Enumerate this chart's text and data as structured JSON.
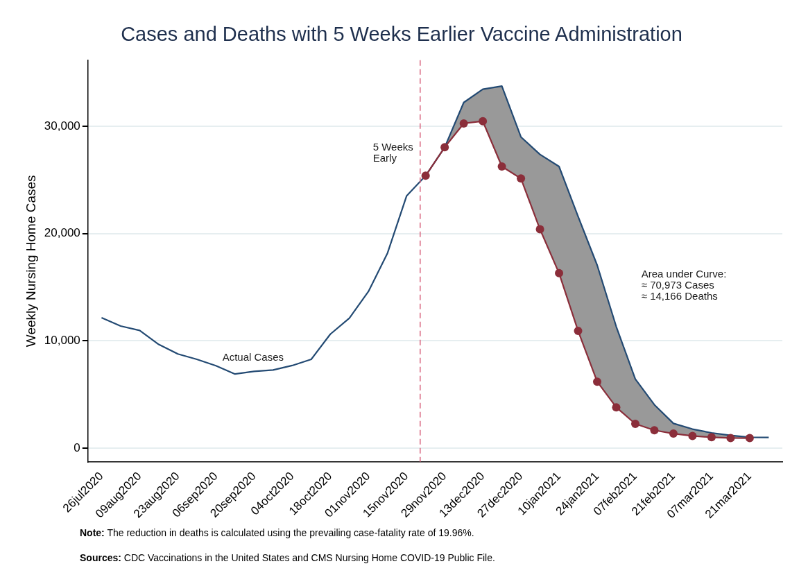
{
  "chart_data": {
    "type": "line",
    "title": "Cases and Deaths with 5 Weeks Earlier Vaccine Administration",
    "ylabel": "Weekly Nursing Home Cases",
    "series": [
      {
        "name": "Actual Cases",
        "color": "#234a73",
        "marker": "none",
        "x": [
          "2020-07-26",
          "2020-08-02",
          "2020-08-09",
          "2020-08-16",
          "2020-08-23",
          "2020-08-30",
          "2020-09-06",
          "2020-09-13",
          "2020-09-20",
          "2020-09-27",
          "2020-10-04",
          "2020-10-11",
          "2020-10-18",
          "2020-10-25",
          "2020-11-01",
          "2020-11-08",
          "2020-11-15",
          "2020-11-22",
          "2020-11-29",
          "2020-12-06",
          "2020-12-13",
          "2020-12-20",
          "2020-12-27",
          "2021-01-03",
          "2021-01-10",
          "2021-01-17",
          "2021-01-24",
          "2021-01-31",
          "2021-02-07",
          "2021-02-14",
          "2021-02-21",
          "2021-02-28",
          "2021-03-07",
          "2021-03-14",
          "2021-03-21",
          "2021-03-28"
        ],
        "values": [
          12160,
          11380,
          10970,
          9660,
          8780,
          8280,
          7680,
          6910,
          7150,
          7280,
          7700,
          8280,
          10620,
          12120,
          14600,
          18170,
          23490,
          25380,
          28030,
          32200,
          33440,
          33730,
          28990,
          27360,
          26240,
          21580,
          17050,
          11330,
          6440,
          4050,
          2310,
          1780,
          1430,
          1190,
          1020,
          1000
        ]
      },
      {
        "color": "#8b2e3a",
        "marker": "circle",
        "x": [
          "2020-11-22",
          "2020-11-29",
          "2020-12-06",
          "2020-12-13",
          "2020-12-20",
          "2020-12-27",
          "2021-01-03",
          "2021-01-10",
          "2021-01-17",
          "2021-01-24",
          "2021-01-31",
          "2021-02-07",
          "2021-02-14",
          "2021-02-21",
          "2021-02-28",
          "2021-03-07",
          "2021-03-14",
          "2021-03-21"
        ],
        "values": [
          25380,
          28030,
          30250,
          30460,
          26240,
          25120,
          20390,
          16300,
          10920,
          6200,
          3810,
          2270,
          1670,
          1360,
          1140,
          1020,
          950,
          940
        ],
        "lower": [
          25380,
          28030,
          30250,
          30460,
          26240,
          25120,
          20390,
          16300,
          10920,
          6200,
          3810,
          2270,
          1670,
          1360,
          1140,
          1020,
          950,
          940
        ],
        "upper": [
          25380,
          28030,
          32200,
          33440,
          33730,
          28990,
          27360,
          26240,
          21580,
          17050,
          11330,
          6440,
          4050,
          2310,
          1780,
          1430,
          1190,
          1020
        ]
      }
    ],
    "xlim": [
      "2020-07-21",
      "2021-04-02"
    ],
    "xticks": [
      {
        "value": "2020-07-26",
        "label": "26jul2020"
      },
      {
        "value": "2020-08-09",
        "label": "09aug2020"
      },
      {
        "value": "2020-08-23",
        "label": "23aug2020"
      },
      {
        "value": "2020-09-06",
        "label": "06sep2020"
      },
      {
        "value": "2020-09-20",
        "label": "20sep2020"
      },
      {
        "value": "2020-10-04",
        "label": "04oct2020"
      },
      {
        "value": "2020-10-18",
        "label": "18oct2020"
      },
      {
        "value": "2020-11-01",
        "label": "01nov2020"
      },
      {
        "value": "2020-11-15",
        "label": "15nov2020"
      },
      {
        "value": "2020-11-29",
        "label": "29nov2020"
      },
      {
        "value": "2020-12-13",
        "label": "13dec2020"
      },
      {
        "value": "2020-12-27",
        "label": "27dec2020"
      },
      {
        "value": "2021-01-10",
        "label": "10jan2021"
      },
      {
        "value": "2021-01-24",
        "label": "24jan2021"
      },
      {
        "value": "2021-02-07",
        "label": "07feb2021"
      },
      {
        "value": "2021-02-21",
        "label": "21feb2021"
      },
      {
        "value": "2021-03-07",
        "label": "07mar2021"
      },
      {
        "value": "2021-03-21",
        "label": "21mar2021"
      }
    ],
    "ylim": [
      -1270,
      36140
    ],
    "yticks": [
      0,
      {
        "value": 10000,
        "label": "10,000"
      },
      {
        "value": 20000,
        "label": "20,000"
      },
      {
        "value": 30000,
        "label": "30,000"
      }
    ],
    "grid": "y",
    "legend": false,
    "line_style": "solid",
    "ref_lines": [
      {
        "axis": "x",
        "value": "2020-11-20",
        "label": "5 Weeks Early",
        "color": "#d9657f",
        "line_style": "dashed"
      }
    ],
    "annotations": [
      "Area under Curve:\n≈ 70,973 Cases\n≈ 14,166 Deaths",
      "Note: The reduction in deaths is calculated using the prevailing case-fatality rate of 19.96%.",
      "Sources: CDC Vaccinations in the United States and CMS Nursing Home COVID-19 Public File."
    ]
  }
}
